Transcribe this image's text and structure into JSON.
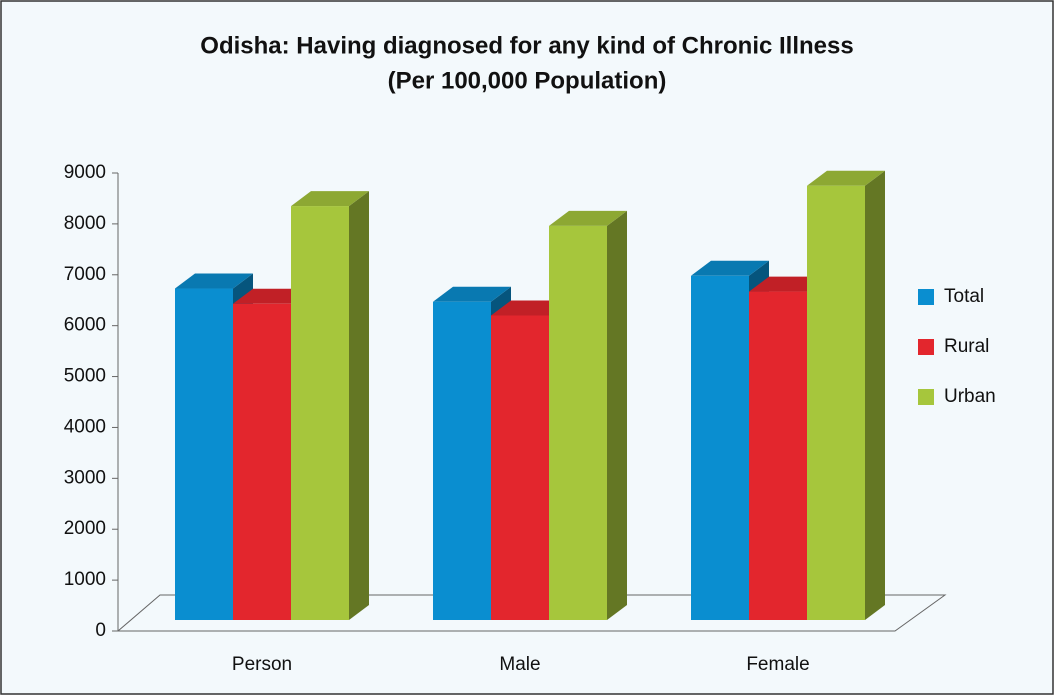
{
  "chart_data": {
    "type": "bar3d",
    "title": "Odisha: Having diagnosed for any kind of Chronic Illness",
    "subtitle": "(Per 100,000 Population)",
    "categories": [
      "Person",
      "Male",
      "Female"
    ],
    "series": [
      {
        "name": "Total",
        "color": "#0a8ed0",
        "values": [
          6730,
          6470,
          6980
        ]
      },
      {
        "name": "Rural",
        "color": "#e3262d",
        "values": [
          6430,
          6200,
          6670
        ]
      },
      {
        "name": "Urban",
        "color": "#a6c63c",
        "values": [
          8350,
          7960,
          8750
        ]
      }
    ],
    "ylim": [
      0,
      9000
    ],
    "yticks": [
      0,
      1000,
      2000,
      3000,
      4000,
      5000,
      6000,
      7000,
      8000,
      9000
    ],
    "legend": "right"
  }
}
